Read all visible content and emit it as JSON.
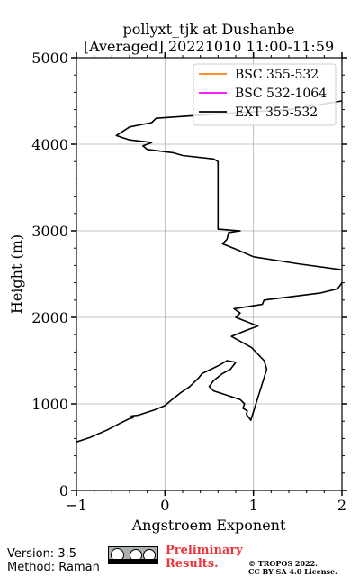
{
  "chart_data": {
    "type": "line",
    "title": "pollyxt_tjk at Dushanbe",
    "subtitle": "[Averaged] 20221010 11:00-11:59",
    "xlabel": "Angstroem Exponent",
    "ylabel": "Height (m)",
    "xlim": [
      -1,
      2
    ],
    "ylim": [
      0,
      5000
    ],
    "xticks": [
      -1,
      0,
      1,
      2
    ],
    "yticks": [
      0,
      1000,
      2000,
      3000,
      4000,
      5000
    ],
    "grid": true,
    "legend_position": "top-right",
    "series": [
      {
        "name": "BSC 355-532",
        "color": "#ff7f0e",
        "x": [],
        "y": []
      },
      {
        "name": "BSC 532-1064",
        "color": "#ff00ff",
        "x": [],
        "y": []
      },
      {
        "name": "EXT 355-532",
        "color": "#000000",
        "x": [
          -1.0,
          -0.85,
          -0.65,
          -0.5,
          -0.4,
          -0.36,
          -0.38,
          -0.3,
          -0.12,
          0.0,
          0.08,
          0.18,
          0.28,
          0.38,
          0.42,
          0.52,
          0.62,
          0.7,
          0.8,
          0.74,
          0.65,
          0.55,
          0.5,
          0.55,
          0.7,
          0.85,
          0.9,
          0.88,
          0.93,
          0.92,
          0.97,
          1.15,
          1.12,
          0.98,
          0.75,
          0.92,
          1.05,
          0.8,
          0.85,
          0.78,
          1.1,
          1.12,
          1.75,
          1.95,
          2.0,
          2.1,
          2.0,
          1.5,
          1.0,
          0.82,
          0.65,
          0.7,
          0.72,
          0.85,
          0.6,
          0.6,
          0.55,
          0.2,
          0.1,
          -0.2,
          -0.25,
          -0.15,
          -0.4,
          -0.55,
          -0.4,
          -0.15,
          -0.1,
          0.6,
          1.4,
          2.0,
          2.1
        ],
        "y": [
          560,
          610,
          700,
          780,
          830,
          840,
          860,
          870,
          930,
          980,
          1050,
          1130,
          1200,
          1300,
          1350,
          1400,
          1450,
          1500,
          1480,
          1400,
          1350,
          1270,
          1200,
          1150,
          1100,
          1050,
          1000,
          950,
          920,
          880,
          810,
          1400,
          1500,
          1650,
          1780,
          1850,
          1900,
          2000,
          2050,
          2100,
          2150,
          2200,
          2280,
          2330,
          2400,
          2480,
          2550,
          2620,
          2700,
          2780,
          2850,
          2900,
          2980,
          3000,
          3020,
          3800,
          3830,
          3870,
          3900,
          3940,
          3980,
          4020,
          4050,
          4100,
          4200,
          4250,
          4300,
          4350,
          4400,
          4500,
          4720
        ]
      }
    ]
  },
  "footer": {
    "version": "Version: 3.5",
    "method": "Method: Raman",
    "preliminary_line1": "Preliminary",
    "preliminary_line2": "Results.",
    "copyright_line1": "© TROPOS 2022.",
    "copyright_line2": "CC BY SA 4.0 License."
  }
}
